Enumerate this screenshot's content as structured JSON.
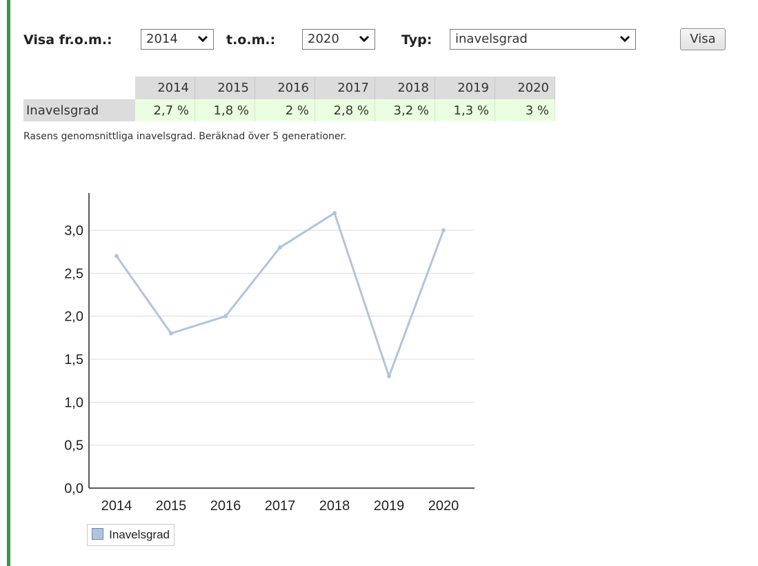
{
  "filters": {
    "from_label": "Visa fr.o.m.:",
    "from_value": "2014",
    "to_label": "t.o.m.:",
    "to_value": "2020",
    "type_label": "Typ:",
    "type_value": "inavelsgrad",
    "submit_label": "Visa"
  },
  "table": {
    "years": [
      "2014",
      "2015",
      "2016",
      "2017",
      "2018",
      "2019",
      "2020"
    ],
    "row_label": "Inavelsgrad",
    "values": [
      "2,7 %",
      "1,8 %",
      "2 %",
      "2,8 %",
      "3,2 %",
      "1,3 %",
      "3 %"
    ]
  },
  "caption": "Rasens genomsnittliga inavelsgrad. Beräknad över 5 generationer.",
  "colors": {
    "accent_bar": "#3f8f4f",
    "line": "#b0c4de",
    "table_header_bg": "#dcdcdc",
    "table_cell_bg": "#eaffdf"
  },
  "chart_data": {
    "type": "line",
    "x": [
      "2014",
      "2015",
      "2016",
      "2017",
      "2018",
      "2019",
      "2020"
    ],
    "series": [
      {
        "name": "Inavelsgrad",
        "values": [
          2.7,
          1.8,
          2.0,
          2.8,
          3.2,
          1.3,
          3.0
        ]
      }
    ],
    "ylim": [
      0,
      3.4
    ],
    "y_ticks": [
      "0,0",
      "0,5",
      "1,0",
      "1,5",
      "2,0",
      "2,5",
      "3,0"
    ],
    "grid": true,
    "legend": "bottom-left"
  }
}
